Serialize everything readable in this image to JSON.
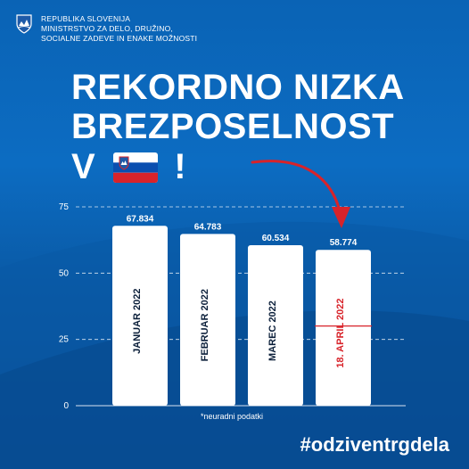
{
  "header": {
    "line1": "REPUBLIKA SLOVENIJA",
    "line2": "MINISTRSTVO ZA DELO, DRUŽINO,",
    "line3": "SOCIALNE ZADEVE IN ENAKE MOŽNOSTI"
  },
  "headline": {
    "line1": "REKORDNO NIZKA",
    "line2": "BREZPOSELNOST",
    "line3_pre": "V",
    "line3_post": "!"
  },
  "footnote": "*neuradni podatki",
  "hashtag": "#odziventrgdela",
  "colors": {
    "background": "#0c6cc2",
    "bar": "#ffffff",
    "highlight": "#d8232a",
    "text": "#ffffff"
  },
  "chart_data": {
    "type": "bar",
    "categories": [
      "JANUAR 2022",
      "FEBRUAR 2022",
      "MAREC 2022",
      "18. APRIL 2022"
    ],
    "values": [
      67834,
      64783,
      60534,
      58774
    ],
    "value_labels": [
      "67.834",
      "64.783",
      "60.534",
      "58.774"
    ],
    "yticks": [
      0,
      25,
      50,
      75
    ],
    "ylim": [
      0,
      75000
    ],
    "grid": true,
    "highlight_index": 3
  }
}
